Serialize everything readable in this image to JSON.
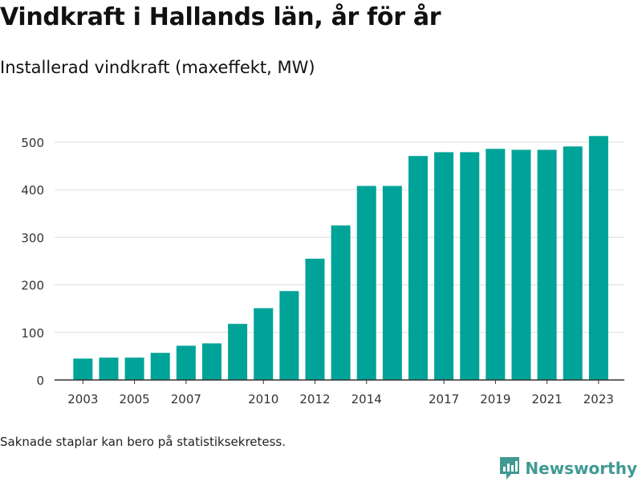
{
  "header": {
    "title": "Vindkraft i Hallands län, år för år",
    "subtitle": "Installerad vindkraft (maxeffekt, MW)"
  },
  "footnote": "Saknade staplar kan bero på statistiksekretess.",
  "brand": {
    "name": "Newsworthy",
    "icon": "newsworthy-logo-icon"
  },
  "colors": {
    "bar": "#00a398",
    "grid": "#dddddd",
    "axis": "#333333",
    "text": "#333333",
    "brand": "#3f9a92"
  },
  "chart_data": {
    "type": "bar",
    "x": [
      2003,
      2004,
      2005,
      2006,
      2007,
      2008,
      2009,
      2010,
      2011,
      2012,
      2013,
      2014,
      2015,
      2016,
      2017,
      2018,
      2019,
      2020,
      2021,
      2022,
      2023
    ],
    "values": [
      45,
      47,
      47,
      57,
      72,
      77,
      118,
      151,
      187,
      255,
      325,
      408,
      408,
      471,
      479,
      479,
      486,
      484,
      484,
      491,
      513
    ],
    "xticks": [
      "2003",
      "2005",
      "2007",
      "2010",
      "2012",
      "2014",
      "2017",
      "2019",
      "2021",
      "2023"
    ],
    "xtick_values": [
      2003,
      2005,
      2007,
      2010,
      2012,
      2014,
      2017,
      2019,
      2021,
      2023
    ],
    "yticks": [
      0,
      100,
      200,
      300,
      400,
      500
    ],
    "ylim": [
      0,
      540
    ],
    "xlim": [
      2001.9,
      2024.0
    ],
    "grid": true,
    "legend": "none"
  }
}
